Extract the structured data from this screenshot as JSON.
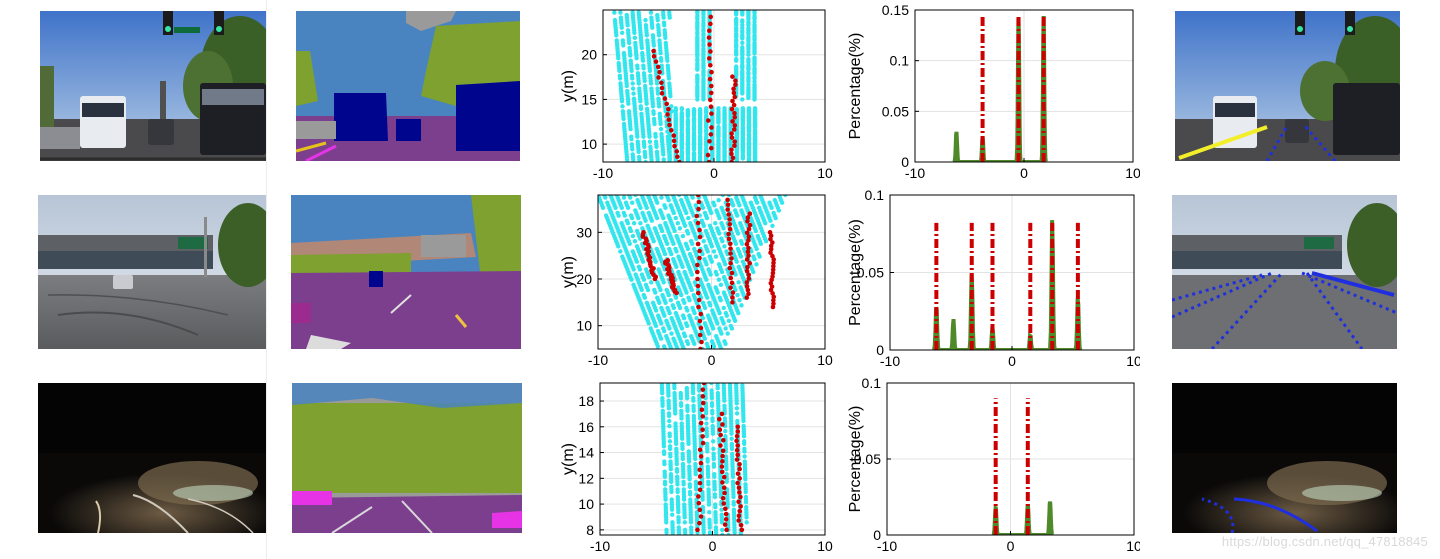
{
  "watermark": "https://blog.csdn.net/qq_47818845",
  "palette": {
    "cyan": "#33e6ee",
    "red": "#cc0000",
    "green": "#4f8a2a",
    "yellow": "#f3ee2a",
    "blue": "#1f2fe0",
    "grid": "#e3e3e3",
    "axis": "#000000",
    "seg_sky": "#4a84c0",
    "seg_veg": "#7ea12f",
    "seg_car": "#00058e",
    "seg_road": "#7c3f8e",
    "seg_gray": "#9a9a9a",
    "seg_tan": "#b18778",
    "seg_magenta": "#e533e5"
  },
  "icons": [
    "traffic-light-icon",
    "highway-sign-icon"
  ],
  "rows": [
    {
      "scene": "daytime urban intersection with bus and cars",
      "lane_overlay": "yellow line and blue dotted lane lines"
    },
    {
      "scene": "highway under overpass with cracked pavement",
      "lane_overlay": "fan of blue dotted lane lines"
    },
    {
      "scene": "night road curving left with headlight glow",
      "lane_overlay": "two blue curved lane lines"
    }
  ],
  "chart_data": [
    {
      "type": "scatter",
      "row": 1,
      "ylabel": "y(m)",
      "xlim": [
        -10,
        10
      ],
      "ylim": [
        8,
        25
      ],
      "xticks": [
        "-10",
        "0",
        "10"
      ],
      "yticks": [
        "10",
        "15",
        "20"
      ],
      "grid": true,
      "series": [
        {
          "color": "cyan",
          "kind": "cloud",
          "clusters": [
            {
              "x": [
                -9,
                -4
              ],
              "y": [
                8,
                25
              ],
              "slope": 0.35
            },
            {
              "x": [
                -1.5,
                0
              ],
              "y": [
                15,
                25
              ]
            },
            {
              "x": [
                2,
                4
              ],
              "y": [
                15,
                25
              ]
            },
            {
              "x": [
                -4,
                4
              ],
              "y": [
                8,
                14
              ]
            }
          ]
        },
        {
          "color": "red",
          "kind": "lanes",
          "lanes": [
            {
              "x_top": -5.5,
              "x_bottom": -3.2,
              "y": [
                8,
                21
              ]
            },
            {
              "x_top": -0.3,
              "x_bottom": -0.4,
              "y": [
                8,
                25
              ]
            },
            {
              "x_top": 1.8,
              "x_bottom": 1.7,
              "y": [
                8,
                18
              ]
            }
          ]
        }
      ]
    },
    {
      "type": "line",
      "row": 1,
      "ylabel": "Percentage(%)",
      "xlim": [
        -10,
        10
      ],
      "ylim": [
        0,
        0.15
      ],
      "xticks": [
        "-10",
        "0",
        "10"
      ],
      "yticks": [
        "0",
        "0.05",
        "0.1",
        "0.15"
      ],
      "grid": true,
      "series": [
        {
          "color": "green",
          "style": "solid",
          "peaks": [
            {
              "x": -6.2,
              "y": 0.03
            },
            {
              "x": -3.8,
              "y": 0.025
            },
            {
              "x": -0.5,
              "y": 0.145
            },
            {
              "x": 1.8,
              "y": 0.145
            }
          ],
          "x_range": [
            -6.5,
            2
          ]
        },
        {
          "color": "red",
          "style": "dashdot",
          "peaks": [
            {
              "x": -3.8,
              "y": 0.145
            },
            {
              "x": -0.5,
              "y": 0.145
            },
            {
              "x": 1.8,
              "y": 0.145
            }
          ]
        }
      ]
    },
    {
      "type": "scatter",
      "row": 2,
      "ylabel": "y(m)",
      "xlim": [
        -10,
        10
      ],
      "ylim": [
        5,
        38
      ],
      "xticks": [
        "-10",
        "0",
        "10"
      ],
      "yticks": [
        "10",
        "20",
        "30"
      ],
      "grid": true,
      "series": [
        {
          "color": "cyan",
          "kind": "cloud",
          "clusters": [
            {
              "x": [
                -10,
                6.5
              ],
              "y": [
                5,
                38
              ],
              "taper": true
            }
          ]
        },
        {
          "color": "red",
          "kind": "lanes",
          "lanes": [
            {
              "x_top": -6,
              "x_bottom": -5,
              "y": [
                20,
                30
              ]
            },
            {
              "x_top": -4,
              "x_bottom": -3.2,
              "y": [
                17,
                24
              ]
            },
            {
              "x_top": -1.2,
              "x_bottom": -1,
              "y": [
                5,
                38
              ]
            },
            {
              "x_top": 1.5,
              "x_bottom": 1.8,
              "y": [
                15,
                38
              ]
            },
            {
              "x_top": 3.3,
              "x_bottom": 3.2,
              "y": [
                16,
                34
              ]
            },
            {
              "x_top": 5.3,
              "x_bottom": 5.4,
              "y": [
                14,
                30
              ]
            }
          ]
        }
      ]
    },
    {
      "type": "line",
      "row": 2,
      "ylabel": "Percentage(%)",
      "xlim": [
        -10,
        10
      ],
      "ylim": [
        0,
        0.1
      ],
      "xticks": [
        "-10",
        "0",
        "10"
      ],
      "yticks": [
        "0",
        "0.05",
        "0.1"
      ],
      "grid": true,
      "series": [
        {
          "color": "green",
          "style": "solid",
          "peaks": [
            {
              "x": -6.2,
              "y": 0.03
            },
            {
              "x": -4.8,
              "y": 0.02
            },
            {
              "x": -3.3,
              "y": 0.05
            },
            {
              "x": -1.6,
              "y": 0.015
            },
            {
              "x": 1.5,
              "y": 0.01
            },
            {
              "x": 3.3,
              "y": 0.085
            },
            {
              "x": 5.4,
              "y": 0.035
            }
          ],
          "x_range": [
            -6.5,
            5.6
          ]
        },
        {
          "color": "red",
          "style": "dashdot",
          "peaks": [
            {
              "x": -6.2,
              "y": 0.082
            },
            {
              "x": -3.3,
              "y": 0.082
            },
            {
              "x": -1.6,
              "y": 0.082
            },
            {
              "x": 1.5,
              "y": 0.082
            },
            {
              "x": 3.3,
              "y": 0.082
            },
            {
              "x": 5.4,
              "y": 0.082
            }
          ]
        }
      ]
    },
    {
      "type": "scatter",
      "row": 3,
      "ylabel": "y(m)",
      "xlim": [
        -10,
        10
      ],
      "ylim": [
        7.6,
        19.4
      ],
      "xticks": [
        "-10",
        "0",
        "10"
      ],
      "yticks": [
        "8",
        "10",
        "12",
        "14",
        "16",
        "18"
      ],
      "grid": true,
      "series": [
        {
          "color": "cyan",
          "kind": "cloud",
          "clusters": [
            {
              "x": [
                -4.5,
                3
              ],
              "y": [
                7.6,
                19.4
              ],
              "slope": 0.18
            }
          ]
        },
        {
          "color": "red",
          "kind": "lanes",
          "lanes": [
            {
              "x_top": -0.8,
              "x_bottom": -1.2,
              "y": [
                8,
                19.4
              ]
            },
            {
              "x_top": 0.7,
              "x_bottom": 1.2,
              "y": [
                8,
                17
              ]
            },
            {
              "x_top": 2.2,
              "x_bottom": 2.5,
              "y": [
                8,
                16
              ]
            }
          ]
        }
      ]
    },
    {
      "type": "line",
      "row": 3,
      "ylabel": "Percentage(%)",
      "xlim": [
        -10,
        10
      ],
      "ylim": [
        0,
        0.1
      ],
      "xticks": [
        "-10",
        "0",
        "10"
      ],
      "yticks": [
        "0",
        "0.05",
        "0.1"
      ],
      "grid": true,
      "series": [
        {
          "color": "green",
          "style": "solid",
          "peaks": [
            {
              "x": -1.2,
              "y": 0.018
            },
            {
              "x": 1.4,
              "y": 0.02
            },
            {
              "x": 3.2,
              "y": 0.022
            }
          ],
          "x_range": [
            -1.5,
            3.4
          ]
        },
        {
          "color": "red",
          "style": "dashdot",
          "peaks": [
            {
              "x": -1.2,
              "y": 0.09
            },
            {
              "x": 1.4,
              "y": 0.09
            }
          ]
        }
      ]
    }
  ]
}
